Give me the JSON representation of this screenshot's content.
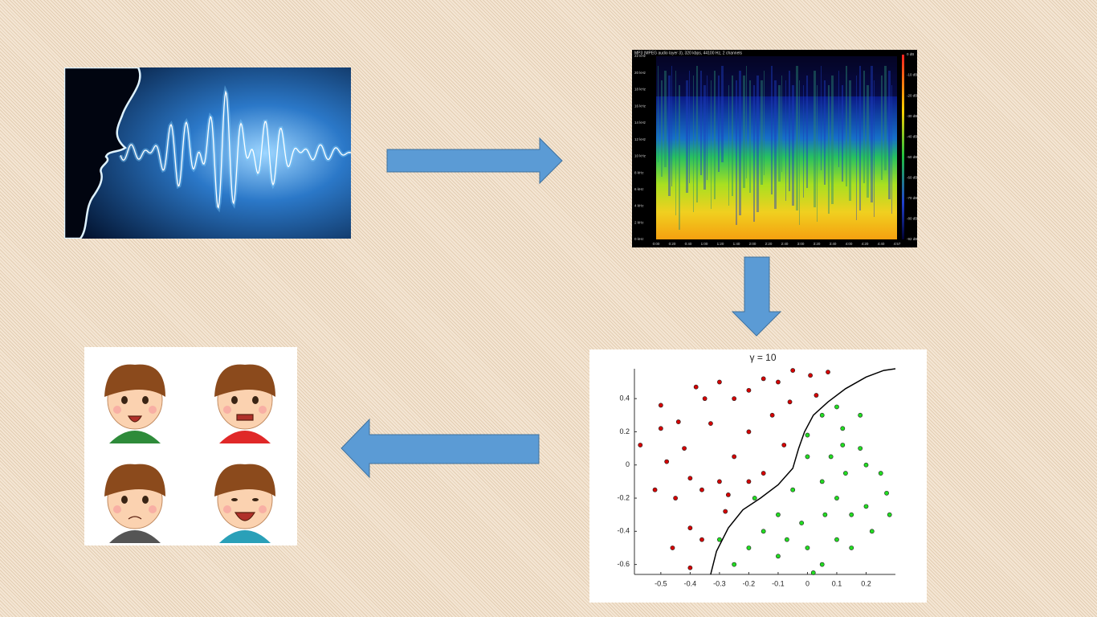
{
  "spectrogram": {
    "header": "MP3 (MPEG audio layer 3), 320 kbps, 44100 Hz, 2 channels",
    "freq_labels": [
      "22 kHz",
      "20 kHz",
      "18 kHz",
      "16 kHz",
      "14 kHz",
      "12 kHz",
      "10 kHz",
      "8 kHz",
      "6 kHz",
      "4 kHz",
      "2 kHz",
      "0 kHz"
    ],
    "db_labels": [
      "0 dB",
      "-10 dB",
      "-20 dB",
      "-30 dB",
      "-40 dB",
      "-50 dB",
      "-60 dB",
      "-70 dB",
      "-80 dB",
      "-92 dB"
    ],
    "time_labels": [
      "0:00",
      "0:20",
      "0:40",
      "1:00",
      "1:20",
      "1:40",
      "2:00",
      "2:20",
      "2:40",
      "3:00",
      "3:20",
      "3:40",
      "4:00",
      "4:20",
      "4:40",
      "4:57"
    ]
  },
  "chart_data": {
    "type": "scatter",
    "title": "γ = 10",
    "xlim": [
      -0.59,
      0.3
    ],
    "ylim": [
      -0.66,
      0.58
    ],
    "xticks": [
      -0.5,
      -0.4,
      -0.3,
      -0.2,
      -0.1,
      0,
      0.1,
      0.2
    ],
    "yticks": [
      -0.6,
      -0.4,
      -0.2,
      0,
      0.2,
      0.4
    ],
    "series": [
      {
        "color": "#d40000",
        "x": [
          -0.57,
          -0.5,
          -0.5,
          -0.48,
          -0.52,
          -0.46,
          -0.44,
          -0.42,
          -0.38,
          -0.35,
          -0.3,
          -0.25,
          -0.2,
          -0.15,
          -0.1,
          -0.05,
          0.01,
          0.07,
          -0.4,
          -0.36,
          -0.3,
          -0.25,
          -0.2,
          -0.12,
          -0.08,
          -0.15,
          -0.4,
          -0.36,
          -0.4,
          -0.28,
          -0.2,
          -0.06,
          0.03,
          -0.33,
          -0.45,
          -0.27
        ],
        "values": [
          0.12,
          0.36,
          0.22,
          0.02,
          -0.15,
          -0.5,
          0.26,
          0.1,
          0.47,
          0.4,
          0.5,
          0.4,
          0.45,
          0.52,
          0.5,
          0.57,
          0.54,
          0.56,
          -0.08,
          -0.15,
          -0.1,
          0.05,
          0.2,
          0.3,
          0.12,
          -0.05,
          -0.38,
          -0.45,
          -0.62,
          -0.28,
          -0.1,
          0.38,
          0.42,
          0.25,
          -0.2,
          -0.18
        ]
      },
      {
        "color": "#22dd22",
        "x": [
          0.0,
          0.05,
          0.1,
          0.12,
          0.18,
          0.2,
          0.25,
          0.28,
          0.27,
          0.22,
          0.15,
          0.1,
          0.05,
          0.0,
          -0.05,
          -0.1,
          -0.15,
          -0.2,
          -0.25,
          -0.3,
          -0.1,
          0.0,
          0.05,
          0.1,
          0.15,
          0.2,
          0.08,
          0.13,
          -0.02,
          0.02,
          -0.18,
          0.18,
          0.06,
          -0.07,
          0.12
        ],
        "values": [
          0.18,
          0.3,
          0.35,
          0.22,
          0.1,
          0.0,
          -0.05,
          -0.3,
          -0.17,
          -0.4,
          -0.3,
          -0.2,
          -0.1,
          0.05,
          -0.15,
          -0.3,
          -0.4,
          -0.5,
          -0.6,
          -0.45,
          -0.55,
          -0.5,
          -0.6,
          -0.45,
          -0.5,
          -0.25,
          0.05,
          -0.05,
          -0.35,
          -0.65,
          -0.2,
          0.3,
          -0.3,
          -0.45,
          0.12
        ]
      }
    ],
    "boundary": {
      "color": "#000000",
      "x": [
        -0.33,
        -0.31,
        -0.27,
        -0.22,
        -0.16,
        -0.1,
        -0.05,
        -0.03,
        -0.01,
        0.02,
        0.07,
        0.13,
        0.2,
        0.26,
        0.3
      ],
      "values": [
        -0.66,
        -0.52,
        -0.38,
        -0.27,
        -0.2,
        -0.12,
        -0.02,
        0.1,
        0.2,
        0.3,
        0.38,
        0.46,
        0.53,
        0.57,
        0.58
      ]
    }
  }
}
